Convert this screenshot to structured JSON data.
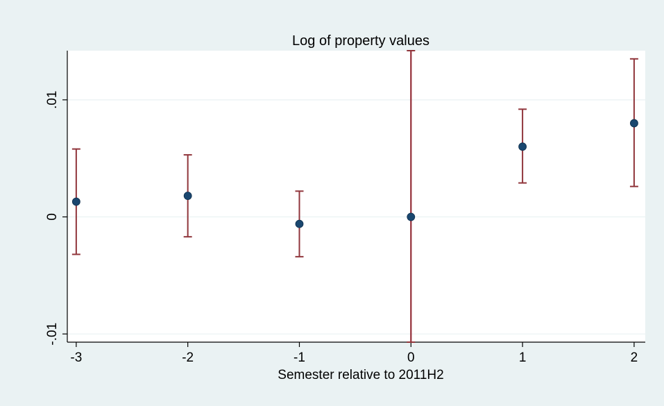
{
  "chart_data": {
    "type": "scatter",
    "title": "Log of property values",
    "xlabel": "Semester relative to 2011H2",
    "ylabel": "",
    "x": [
      -3,
      -2,
      -1,
      0,
      1,
      2
    ],
    "y": [
      0.0013,
      0.0018,
      -0.0006,
      0.0,
      0.006,
      0.008
    ],
    "ci_lower": [
      -0.0032,
      -0.0017,
      -0.0034,
      -0.0107,
      0.0029,
      0.0026
    ],
    "ci_upper": [
      0.0058,
      0.0053,
      0.0022,
      0.0142,
      0.0092,
      0.0135
    ],
    "xticks": [
      -3,
      -2,
      -1,
      0,
      1,
      2
    ],
    "xtick_labels": [
      "-3",
      "-2",
      "-1",
      "0",
      "1",
      "2"
    ],
    "yticks": [
      -0.01,
      0,
      0.01
    ],
    "ytick_labels": [
      "-.01",
      "0",
      ".01"
    ],
    "xlim": [
      -3.08,
      2.1
    ],
    "ylim": [
      -0.0107,
      0.0142
    ],
    "reference_line_x": 0,
    "grid": true,
    "colors": {
      "background": "#eaf2f3",
      "plot_background": "#ffffff",
      "marker": "#1a476f",
      "error_bar": "#90353b",
      "reference_line": "#c10534",
      "grid": "#eaf2f3"
    }
  }
}
